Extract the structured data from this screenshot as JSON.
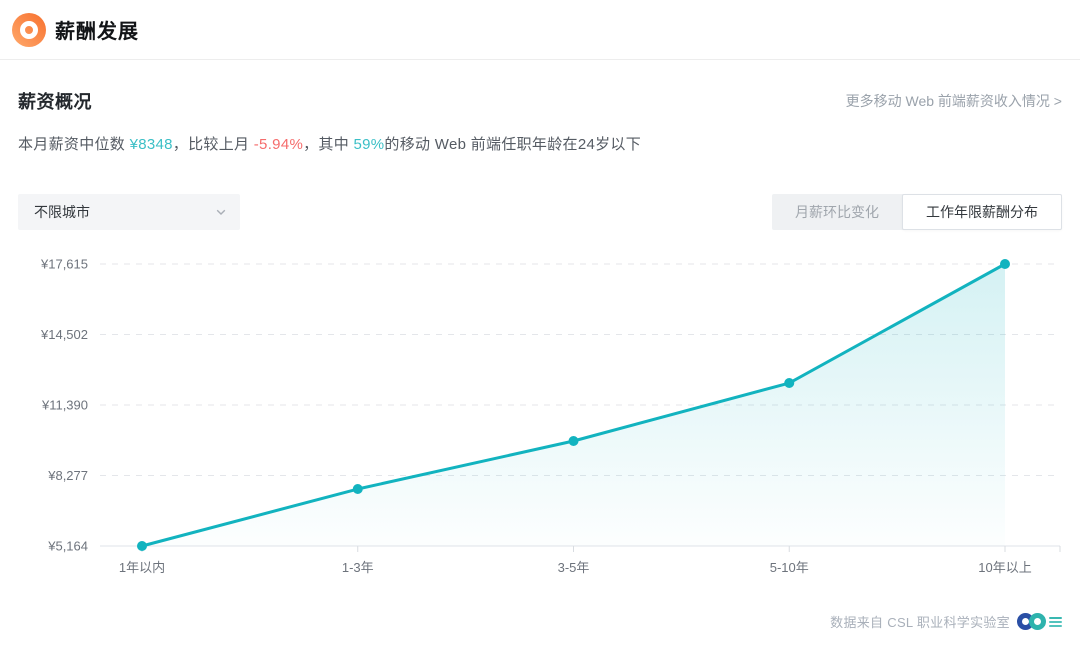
{
  "header": {
    "title": "薪酬发展"
  },
  "section": {
    "title": "薪资概况",
    "more_link": "更多移动 Web 前端薪资收入情况 >"
  },
  "summary": {
    "part1": "本月薪资中位数 ",
    "median_value": "¥8348",
    "part2": "，比较上月 ",
    "mom_change": "-5.94%",
    "part3": "，其中 ",
    "under24_percent": "59%",
    "part4": "的移动 Web 前端任职年龄在24岁以下"
  },
  "controls": {
    "city_filter": {
      "value": "不限城市"
    },
    "tabs": {
      "0": {
        "label": "月薪环比变化",
        "active": false
      },
      "1": {
        "label": "工作年限薪酬分布",
        "active": true
      }
    }
  },
  "chart_data": {
    "type": "area",
    "categories": [
      "1年以内",
      "1-3年",
      "3-5年",
      "5-10年",
      "10年以上"
    ],
    "values": [
      5164,
      7680,
      9800,
      12360,
      17615
    ],
    "y_ticks": [
      5164,
      8277,
      11390,
      14502,
      17615
    ],
    "y_tick_labels": [
      "¥5,164",
      "¥8,277",
      "¥11,390",
      "¥14,502",
      "¥17,615"
    ],
    "ylim": [
      5164,
      17615
    ],
    "title": "",
    "xlabel": "",
    "ylabel": "",
    "grid": "horizontal-dashed",
    "legend": "none",
    "line_color": "#12b3bf",
    "area_color": "#12b3bf"
  },
  "footer": {
    "credit": "数据来自 CSL 职业科学实验室"
  },
  "colors": {
    "accent_teal_text": "#3bbfc6",
    "negative_red": "#f56c6c",
    "line_teal": "#12b3bf",
    "brand_orange": "#f7702e",
    "logo_blue": "#2a4fa5",
    "logo_teal": "#2eb3ad"
  }
}
